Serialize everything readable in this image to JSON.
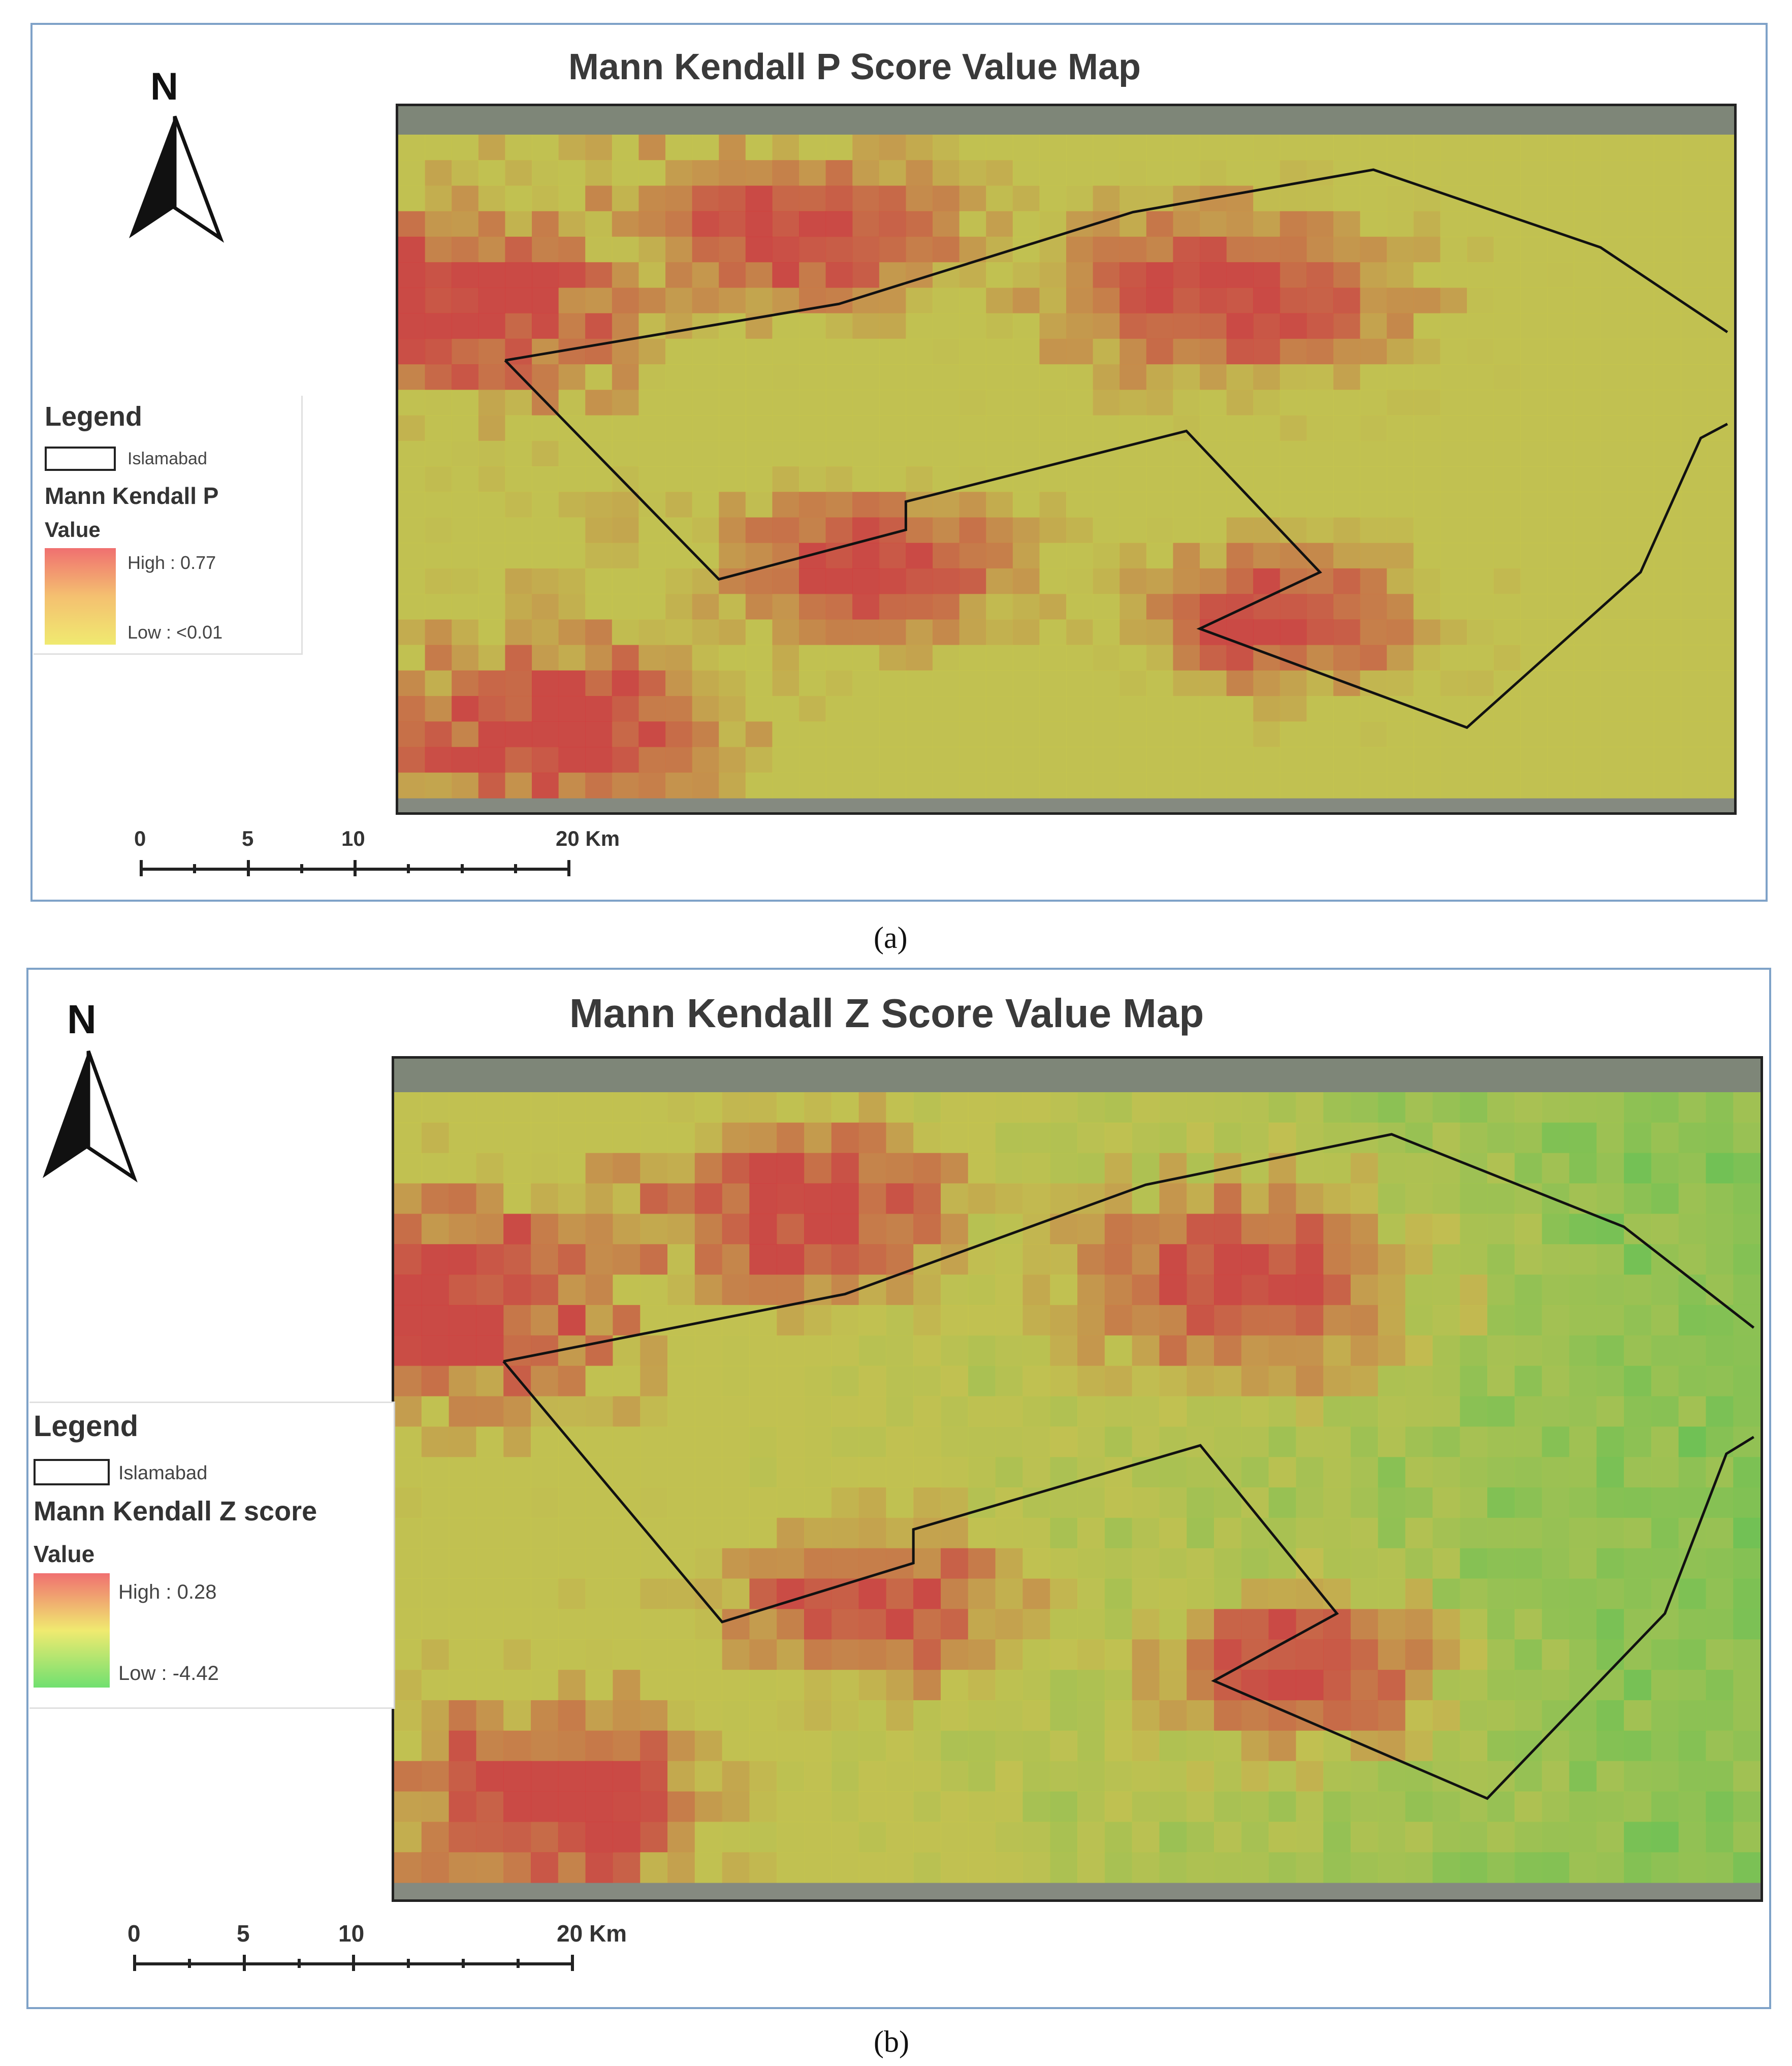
{
  "panels": [
    {
      "id": "a",
      "title": "Mann Kendall P Score Value Map",
      "north_label": "N",
      "legend": {
        "title": "Legend",
        "boundary_label": "Islamabad",
        "layer_label": "Mann Kendall P",
        "value_label": "Value",
        "high_label": "High : 0.77",
        "low_label": "Low : <0.01",
        "ramp_colors": [
          "#f07070",
          "#f4c070",
          "#f0ea70"
        ]
      },
      "scale_bar": {
        "labels": [
          "0",
          "5",
          "10",
          "20 Km"
        ]
      },
      "caption": "(a)",
      "colors": {
        "low": "#c8c84a",
        "high": "#d23c3c"
      }
    },
    {
      "id": "b",
      "title": "Mann Kendall Z Score Value Map",
      "north_label": "N",
      "legend": {
        "title": "Legend",
        "boundary_label": "Islamabad",
        "layer_label": "Mann Kendall Z score",
        "value_label": "Value",
        "high_label": "High : 0.28",
        "low_label": "Low : -4.42",
        "ramp_colors": [
          "#f07070",
          "#f0ea70",
          "#70e070"
        ]
      },
      "scale_bar": {
        "labels": [
          "0",
          "5",
          "10",
          "20 Km"
        ]
      },
      "caption": "(b)",
      "colors": {
        "low": "#58c850",
        "mid": "#c8c84a",
        "high": "#d23c3c"
      }
    }
  ]
}
